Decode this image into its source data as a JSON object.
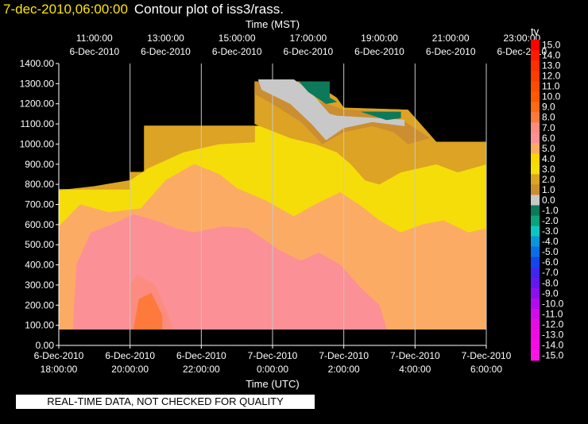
{
  "header": {
    "timestamp": "7-dec-2010,06:00:00",
    "title": "Contour plot of iss3/rass."
  },
  "footer_note": "REAL-TIME DATA, NOT CHECKED FOR QUALITY",
  "chart_data": {
    "type": "heatmap",
    "title": "Contour plot of iss3/rass.",
    "top_axis": {
      "label": "Time (MST)",
      "ticks": [
        {
          "time": "11:00:00",
          "date": "6-Dec-2010"
        },
        {
          "time": "13:00:00",
          "date": "6-Dec-2010"
        },
        {
          "time": "15:00:00",
          "date": "6-Dec-2010"
        },
        {
          "time": "17:00:00",
          "date": "6-Dec-2010"
        },
        {
          "time": "19:00:00",
          "date": "6-Dec-2010"
        },
        {
          "time": "21:00:00",
          "date": "6-Dec-2010"
        },
        {
          "time": "23:00:00",
          "date": "6-Dec-2010"
        }
      ]
    },
    "bottom_axis": {
      "label": "Time (UTC)",
      "ticks": [
        {
          "date": "6-Dec-2010",
          "time": "18:00:00"
        },
        {
          "date": "6-Dec-2010",
          "time": "20:00:00"
        },
        {
          "date": "6-Dec-2010",
          "time": "22:00:00"
        },
        {
          "date": "7-Dec-2010",
          "time": "0:00:00"
        },
        {
          "date": "7-Dec-2010",
          "time": "2:00:00"
        },
        {
          "date": "7-Dec-2010",
          "time": "4:00:00"
        },
        {
          "date": "7-Dec-2010",
          "time": "6:00:00"
        }
      ]
    },
    "y_axis": {
      "label": "",
      "range": [
        0,
        1400
      ],
      "ticks": [
        "0.00",
        "100.00",
        "200.00",
        "300.00",
        "400.00",
        "500.00",
        "600.00",
        "700.00",
        "800.00",
        "900.00",
        "1000.00",
        "1100.00",
        "1200.00",
        "1300.00",
        "1400.00"
      ]
    },
    "x_range_utc_hours": [
      18,
      30
    ],
    "colorbar": {
      "label": "tv",
      "levels": [
        {
          "value": "15.0",
          "color": "#ff0000"
        },
        {
          "value": "14.0",
          "color": "#ff1a00"
        },
        {
          "value": "13.0",
          "color": "#ff2e00"
        },
        {
          "value": "12.0",
          "color": "#ff3d00"
        },
        {
          "value": "11.0",
          "color": "#ff4c00"
        },
        {
          "value": "10.0",
          "color": "#ff5a00"
        },
        {
          "value": "9.0",
          "color": "#ff6a14"
        },
        {
          "value": "8.0",
          "color": "#fd7a3c"
        },
        {
          "value": "7.0",
          "color": "#fc8c80"
        },
        {
          "value": "6.0",
          "color": "#fb9096"
        },
        {
          "value": "5.0",
          "color": "#fcab64"
        },
        {
          "value": "4.0",
          "color": "#fdd600"
        },
        {
          "value": "3.0",
          "color": "#f5dd0a"
        },
        {
          "value": "2.0",
          "color": "#dca324"
        },
        {
          "value": "1.0",
          "color": "#cb8e30"
        },
        {
          "value": "0.0",
          "color": "#c8c8c8"
        },
        {
          "value": "-1.0",
          "color": "#0c7a5a"
        },
        {
          "value": "-2.0",
          "color": "#0ba27c"
        },
        {
          "value": "-3.0",
          "color": "#0ac8c0"
        },
        {
          "value": "-4.0",
          "color": "#0a96d8"
        },
        {
          "value": "-5.0",
          "color": "#0a6ee6"
        },
        {
          "value": "-6.0",
          "color": "#1446ee"
        },
        {
          "value": "-7.0",
          "color": "#3c28f0"
        },
        {
          "value": "-8.0",
          "color": "#6418f0"
        },
        {
          "value": "-9.0",
          "color": "#8c0ff0"
        },
        {
          "value": "-10.0",
          "color": "#b40af0"
        },
        {
          "value": "-11.0",
          "color": "#d20aec"
        },
        {
          "value": "-12.0",
          "color": "#e60ae6"
        },
        {
          "value": "-13.0",
          "color": "#f00ae6"
        },
        {
          "value": "-14.0",
          "color": "#fa0ae6"
        },
        {
          "value": "-15.0",
          "color": "#ff14e6"
        }
      ]
    },
    "approx_regions": [
      {
        "tv": 3.0,
        "description": "data envelope",
        "points": [
          [
            18,
            775
          ],
          [
            20,
            775
          ],
          [
            20,
            860
          ],
          [
            20.4,
            860
          ],
          [
            20.4,
            1090
          ],
          [
            27.8,
            1090
          ],
          [
            28.6,
            1010
          ],
          [
            30,
            1010
          ],
          [
            30,
            80
          ],
          [
            18,
            80
          ]
        ]
      },
      {
        "tv": 2.0,
        "points": [
          [
            18,
            775
          ],
          [
            20,
            775
          ],
          [
            20,
            860
          ],
          [
            20.4,
            860
          ],
          [
            20.4,
            1090
          ],
          [
            23.5,
            1090
          ],
          [
            23.5,
            1010
          ],
          [
            22.5,
            1000
          ],
          [
            21.5,
            960
          ],
          [
            20.5,
            880
          ],
          [
            20,
            820
          ],
          [
            19,
            790
          ],
          [
            18,
            770
          ]
        ]
      },
      {
        "tv": 2.0,
        "points": [
          [
            23.5,
            1310
          ],
          [
            25.1,
            1310
          ],
          [
            25.8,
            1230
          ],
          [
            26,
            1180
          ],
          [
            27.8,
            1170
          ],
          [
            28.6,
            1010
          ],
          [
            30,
            1010
          ],
          [
            30,
            900
          ],
          [
            29.2,
            860
          ],
          [
            28.6,
            900
          ],
          [
            27.6,
            860
          ],
          [
            27,
            800
          ],
          [
            26.6,
            820
          ],
          [
            26.2,
            900
          ],
          [
            25.8,
            960
          ],
          [
            25.2,
            1000
          ],
          [
            24.5,
            1030
          ],
          [
            23.5,
            1100
          ]
        ]
      },
      {
        "tv": 1.0,
        "points": [
          [
            23.5,
            1310
          ],
          [
            24.2,
            1310
          ],
          [
            25.0,
            1230
          ],
          [
            26,
            1170
          ],
          [
            27.2,
            1160
          ],
          [
            27.8,
            1100
          ],
          [
            28.4,
            1030
          ],
          [
            27.8,
            1000
          ],
          [
            27.4,
            1060
          ],
          [
            26.8,
            1090
          ],
          [
            26,
            1060
          ],
          [
            25.4,
            1000
          ],
          [
            24.8,
            1110
          ],
          [
            24,
            1200
          ],
          [
            23.5,
            1250
          ]
        ]
      },
      {
        "tv": 0.0,
        "points": [
          [
            23.6,
            1320
          ],
          [
            24.6,
            1320
          ],
          [
            25.0,
            1270
          ],
          [
            25.6,
            1150
          ],
          [
            25.8,
            1140
          ],
          [
            27.7,
            1120
          ],
          [
            27.7,
            1090
          ],
          [
            26.8,
            1110
          ],
          [
            26,
            1080
          ],
          [
            25.5,
            1020
          ],
          [
            25.1,
            1100
          ],
          [
            24.5,
            1200
          ],
          [
            23.7,
            1270
          ]
        ]
      },
      {
        "tv": -1.0,
        "points": [
          [
            24.75,
            1310
          ],
          [
            25.6,
            1310
          ],
          [
            25.6,
            1230
          ],
          [
            25.8,
            1210
          ],
          [
            25.5,
            1200
          ],
          [
            25.0,
            1260
          ]
        ]
      },
      {
        "tv": -1.0,
        "points": [
          [
            26.5,
            1160
          ],
          [
            27.6,
            1160
          ],
          [
            27.6,
            1130
          ],
          [
            27.2,
            1120
          ]
        ]
      },
      {
        "tv": 5.0,
        "points": [
          [
            18,
            590
          ],
          [
            18.6,
            700
          ],
          [
            19.4,
            660
          ],
          [
            20.3,
            680
          ],
          [
            21,
            820
          ],
          [
            21.8,
            900
          ],
          [
            22.5,
            850
          ],
          [
            23,
            780
          ],
          [
            23.8,
            720
          ],
          [
            24.6,
            640
          ],
          [
            25.2,
            700
          ],
          [
            25.9,
            760
          ],
          [
            26.5,
            690
          ],
          [
            27,
            620
          ],
          [
            27.6,
            560
          ],
          [
            28.2,
            600
          ],
          [
            28.8,
            620
          ],
          [
            29.5,
            560
          ],
          [
            30,
            580
          ],
          [
            30,
            80
          ],
          [
            18,
            80
          ]
        ]
      },
      {
        "tv": 6.0,
        "points": [
          [
            18.4,
            80
          ],
          [
            18.5,
            400
          ],
          [
            18.9,
            560
          ],
          [
            19.5,
            600
          ],
          [
            20.1,
            650
          ],
          [
            20.7,
            620
          ],
          [
            21.3,
            580
          ],
          [
            21.8,
            560
          ],
          [
            22.6,
            590
          ],
          [
            23.3,
            580
          ],
          [
            23.8,
            520
          ],
          [
            24.2,
            470
          ],
          [
            24.8,
            420
          ],
          [
            25.3,
            460
          ],
          [
            25.9,
            400
          ],
          [
            26.5,
            280
          ],
          [
            27.0,
            200
          ],
          [
            27.2,
            80
          ]
        ]
      },
      {
        "tv": 7.0,
        "points": [
          [
            20.0,
            80
          ],
          [
            20.0,
            300
          ],
          [
            20.2,
            350
          ],
          [
            20.7,
            300
          ],
          [
            21.0,
            180
          ],
          [
            21.2,
            80
          ]
        ]
      },
      {
        "tv": 8.0,
        "points": [
          [
            20.1,
            80
          ],
          [
            20.25,
            230
          ],
          [
            20.6,
            260
          ],
          [
            20.9,
            150
          ],
          [
            20.9,
            80
          ]
        ]
      }
    ]
  }
}
